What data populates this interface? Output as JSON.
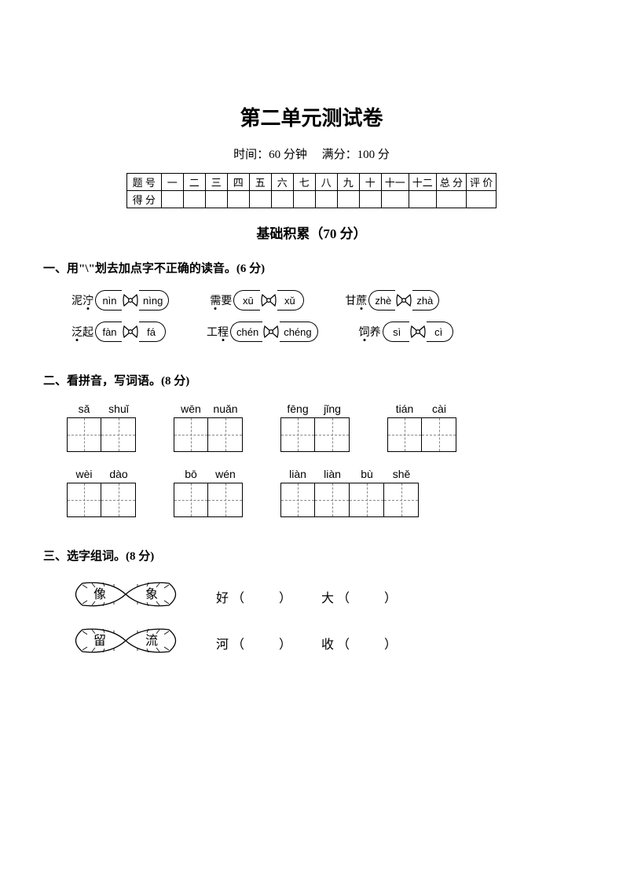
{
  "page": {
    "title": "第二单元测试卷",
    "time_label": "时间：60 分钟",
    "full_label": "满分：100 分",
    "section": "基础积累（70 分）"
  },
  "score_table": {
    "row1": [
      "题 号",
      "一",
      "二",
      "三",
      "四",
      "五",
      "六",
      "七",
      "八",
      "九",
      "十",
      "十一",
      "十二",
      "总 分",
      "评 价"
    ],
    "row2_label": "得 分"
  },
  "q1": {
    "heading": "一、用\"\\\"划去加点字不正确的读音。(6 分)",
    "items": [
      {
        "label": "泥泞",
        "dot_idx": 1,
        "left": "nìn",
        "right": "nìng"
      },
      {
        "label": "需要",
        "dot_idx": 0,
        "left": "xū",
        "right": "xǔ"
      },
      {
        "label": "甘蔗",
        "dot_idx": 1,
        "left": "zhè",
        "right": "zhà"
      },
      {
        "label": "泛起",
        "dot_idx": 0,
        "left": "fàn",
        "right": "fá"
      },
      {
        "label": "工程",
        "dot_idx": 1,
        "left": "chén",
        "right": "chéng"
      },
      {
        "label": "饲养",
        "dot_idx": 0,
        "left": "sì",
        "right": "cì"
      }
    ]
  },
  "q2": {
    "heading": "二、看拼音，写词语。(8 分)",
    "rows": [
      [
        [
          "sǎ",
          "shuǐ"
        ],
        [
          "wēn",
          "nuǎn"
        ],
        [
          "fēng",
          "jǐng"
        ],
        [
          "tián",
          "cài"
        ]
      ],
      [
        [
          "wèi",
          "dào"
        ],
        [
          "bō",
          "wén"
        ],
        [
          "liàn",
          "liàn",
          "bù",
          "shě"
        ]
      ]
    ]
  },
  "q3": {
    "heading": "三、选字组词。(8 分)",
    "pairs": [
      {
        "a": "像",
        "b": "象",
        "fill1": "好（　　）",
        "fill2": "大（　　）"
      },
      {
        "a": "留",
        "b": "流",
        "fill1": "河（　　）",
        "fill2": "收（　　）"
      }
    ]
  },
  "colors": {
    "ink": "#000000",
    "bg": "#ffffff",
    "dash": "#888888"
  }
}
